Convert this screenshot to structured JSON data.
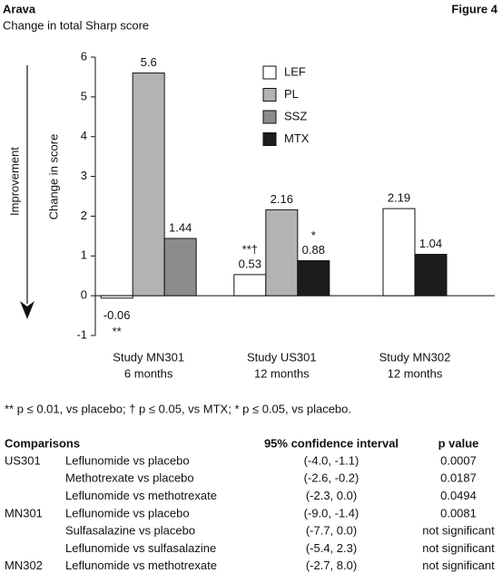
{
  "chart_data": {
    "type": "bar",
    "title": "Arava",
    "subtitle": "Change in total Sharp score",
    "figure_label": "Figure 4",
    "y_label": "Change in score",
    "direction_label": "Improvement",
    "categories": [
      [
        "Study MN301",
        "6 months"
      ],
      [
        "Study US301",
        "12 months"
      ],
      [
        "Study MN302",
        "12 months"
      ]
    ],
    "series": [
      {
        "name": "LEF",
        "color": "#ffffff",
        "values": [
          -0.06,
          0.53,
          2.19
        ],
        "notes": [
          "**",
          "**†",
          null
        ]
      },
      {
        "name": "PL",
        "color": "#b3b3b3",
        "values": [
          5.6,
          2.16,
          null
        ],
        "notes": [
          null,
          null,
          null
        ]
      },
      {
        "name": "SSZ",
        "color": "#8c8c8c",
        "values": [
          1.44,
          null,
          null
        ],
        "notes": [
          null,
          null,
          null
        ]
      },
      {
        "name": "MTX",
        "color": "#1c1c1c",
        "values": [
          null,
          0.88,
          1.04
        ],
        "notes": [
          null,
          "*",
          null
        ]
      }
    ],
    "ylim": [
      -1,
      6
    ],
    "yticks": [
      -1,
      0,
      1,
      2,
      3,
      4,
      5,
      6
    ],
    "grid": false,
    "legend": "top"
  },
  "footnote": "** p ≤ 0.01, vs placebo; † p ≤ 0.05, vs MTX; * p ≤ 0.05, vs placebo.",
  "table": {
    "header": [
      "Comparisons",
      "95% confidence interval",
      "p value"
    ],
    "rows": [
      [
        "US301",
        "Leflunomide vs placebo",
        "(-4.0, -1.1)",
        "0.0007"
      ],
      [
        null,
        "Methotrexate vs placebo",
        "(-2.6, -0.2)",
        "0.0187"
      ],
      [
        null,
        "Leflunomide vs methotrexate",
        "(-2.3, 0.0)",
        "0.0494"
      ],
      [
        "MN301",
        "Leflunomide vs placebo",
        "(-9.0, -1.4)",
        "0.0081"
      ],
      [
        null,
        "Sulfasalazine vs placebo",
        "(-7.7, 0.0)",
        "not significant"
      ],
      [
        null,
        "Leflunomide vs sulfasalazine",
        "(-5.4, 2.3)",
        "not significant"
      ],
      [
        "MN302",
        "Leflunomide vs methotrexate",
        "(-2.7, 8.0)",
        "not significant"
      ]
    ]
  }
}
